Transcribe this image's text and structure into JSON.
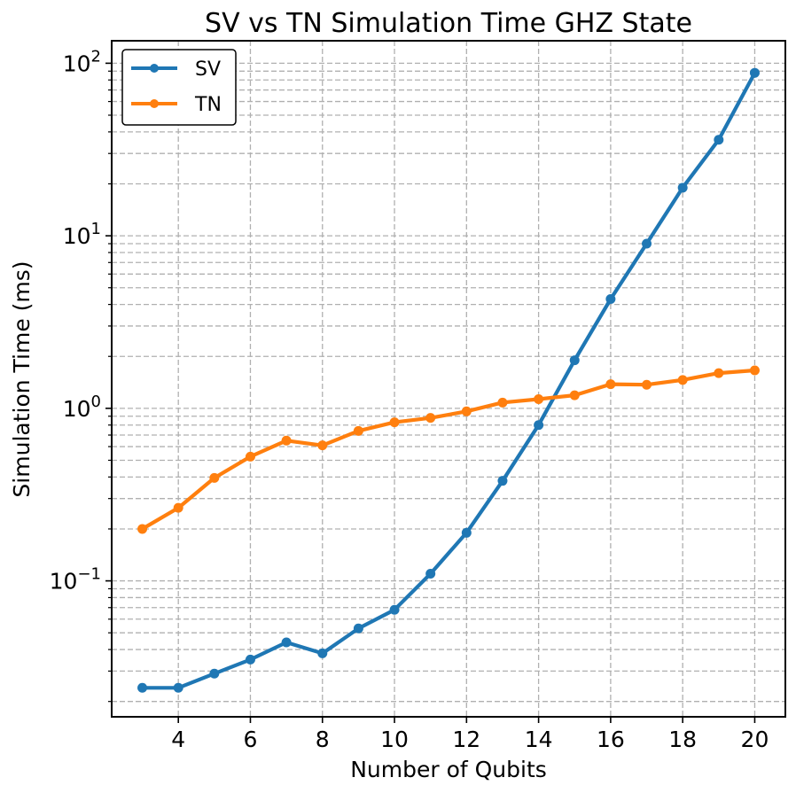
{
  "chart_data": {
    "type": "line",
    "title": "SV vs TN Simulation Time GHZ State",
    "xlabel": "Number of Qubits",
    "ylabel": "Simulation Time (ms)",
    "yscale": "log",
    "xlim": [
      2.15,
      20.85
    ],
    "ylim": [
      0.0163,
      135
    ],
    "x": [
      3,
      4,
      5,
      6,
      7,
      8,
      9,
      10,
      11,
      12,
      13,
      14,
      15,
      16,
      17,
      18,
      19,
      20
    ],
    "xticks": [
      4,
      6,
      8,
      10,
      12,
      14,
      16,
      18,
      20
    ],
    "yticks": [
      {
        "value": 0.1,
        "base": "10",
        "exp": "−1"
      },
      {
        "value": 1,
        "base": "10",
        "exp": "0"
      },
      {
        "value": 10,
        "base": "10",
        "exp": "1"
      },
      {
        "value": 100,
        "base": "10",
        "exp": "2"
      }
    ],
    "grid": true,
    "legend_position": "top-left",
    "series": [
      {
        "name": "SV",
        "color": "#1f77b4",
        "values": [
          0.024,
          0.024,
          0.029,
          0.035,
          0.044,
          0.038,
          0.053,
          0.068,
          0.11,
          0.19,
          0.38,
          0.8,
          1.9,
          4.3,
          9.0,
          19.0,
          36.0,
          88.0
        ]
      },
      {
        "name": "TN",
        "color": "#ff7f0e",
        "values": [
          0.2,
          0.265,
          0.395,
          0.525,
          0.65,
          0.61,
          0.74,
          0.83,
          0.88,
          0.96,
          1.08,
          1.13,
          1.19,
          1.38,
          1.37,
          1.46,
          1.6,
          1.66
        ]
      }
    ]
  }
}
